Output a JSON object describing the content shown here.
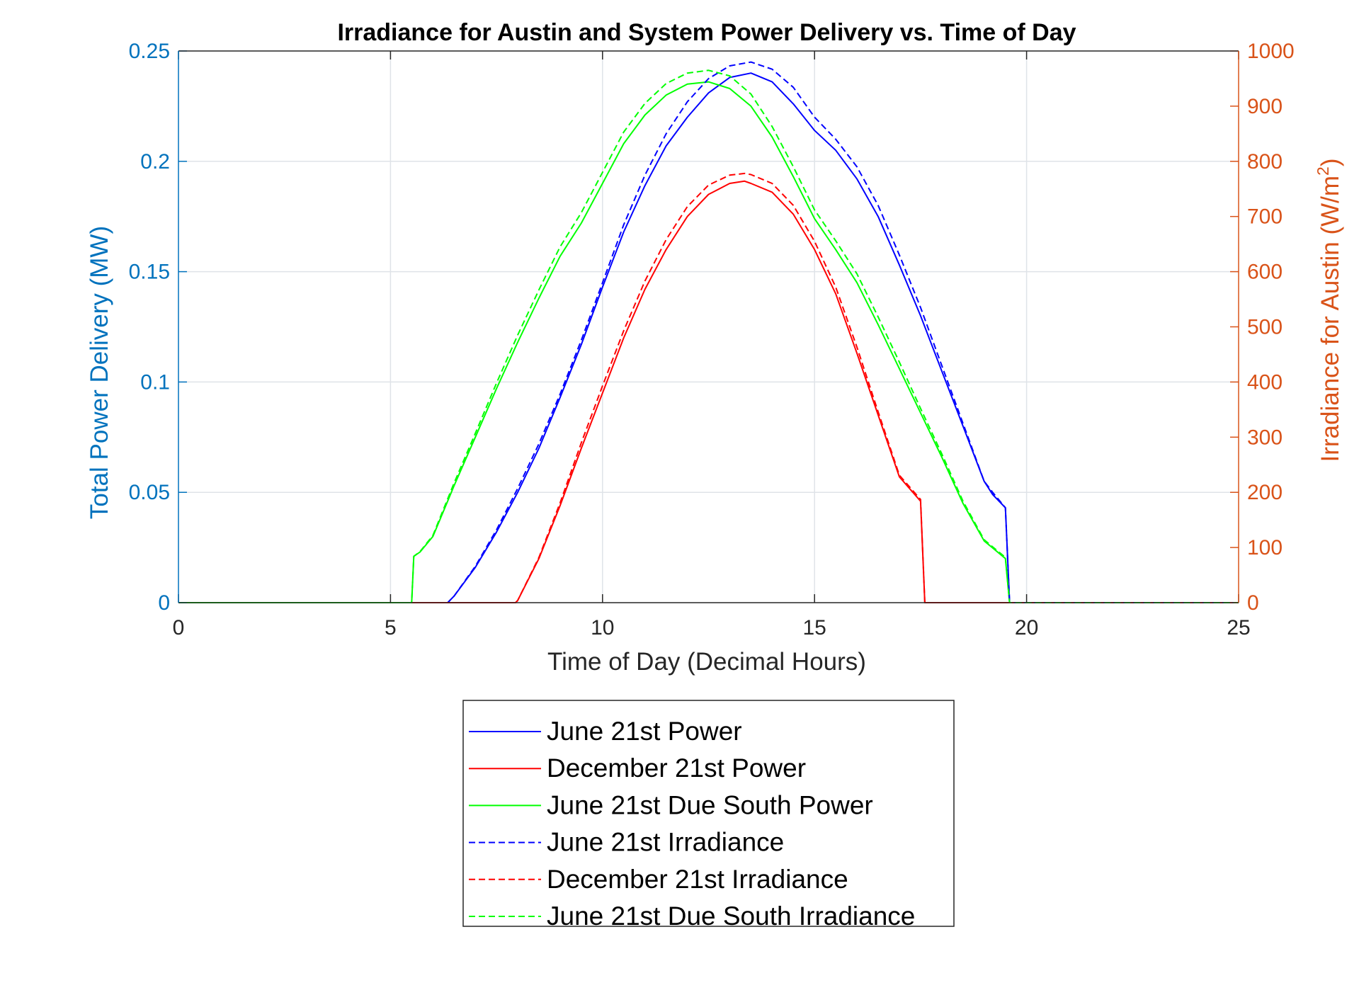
{
  "chart_data": {
    "type": "line",
    "title": "Irradiance for Austin and System Power Delivery vs. Time of Day",
    "xlabel": "Time of Day (Decimal Hours)",
    "ylabel_left": "Total Power Delivery (MW)",
    "ylabel_right_base": "Irradiance for Austin (W/m",
    "ylabel_right_sup": "2",
    "ylabel_right_close": ")",
    "xlim": [
      0,
      25
    ],
    "ylim_left": [
      0,
      0.25
    ],
    "ylim_right": [
      0,
      1000
    ],
    "xticks": [
      "0",
      "5",
      "10",
      "15",
      "20",
      "25"
    ],
    "yticks_left": [
      "0",
      "0.05",
      "0.1",
      "0.15",
      "0.2",
      "0.25"
    ],
    "yticks_right": [
      "0",
      "100",
      "200",
      "300",
      "400",
      "500",
      "600",
      "700",
      "800",
      "900",
      "1000"
    ],
    "grid": true,
    "legend_placement": "below plot, centered",
    "colors": {
      "left_axis": "#0072BD",
      "right_axis": "#D95319",
      "grid": "#dfe3e8",
      "frame": "#262626"
    },
    "series": [
      {
        "name": "June 21st Power",
        "axis": "left",
        "color": "#0000ff",
        "dash": "solid",
        "x": [
          0,
          6.35,
          6.5,
          7,
          7.5,
          8,
          8.5,
          9,
          9.5,
          10,
          10.5,
          11,
          11.5,
          12,
          12.5,
          13,
          13.5,
          14,
          14.5,
          15,
          15.5,
          16,
          16.5,
          17,
          17.5,
          18,
          18.5,
          19,
          19.2,
          19.5,
          19.6,
          25
        ],
        "y": [
          0,
          0,
          0.003,
          0.016,
          0.032,
          0.05,
          0.07,
          0.093,
          0.117,
          0.143,
          0.168,
          0.189,
          0.207,
          0.22,
          0.231,
          0.238,
          0.24,
          0.236,
          0.226,
          0.214,
          0.205,
          0.192,
          0.175,
          0.153,
          0.13,
          0.105,
          0.08,
          0.055,
          0.049,
          0.043,
          0,
          0
        ]
      },
      {
        "name": "December 21st Power",
        "axis": "left",
        "color": "#ff0000",
        "dash": "solid",
        "x": [
          0,
          7.95,
          8,
          8.5,
          9,
          9.5,
          10,
          10.5,
          11,
          11.5,
          12,
          12.5,
          13,
          13.35,
          13.5,
          14,
          14.5,
          15,
          15.5,
          16,
          16.5,
          17,
          17.5,
          17.6,
          25
        ],
        "y": [
          0,
          0,
          0.001,
          0.02,
          0.044,
          0.07,
          0.095,
          0.12,
          0.142,
          0.16,
          0.175,
          0.185,
          0.19,
          0.191,
          0.19,
          0.186,
          0.176,
          0.16,
          0.14,
          0.113,
          0.085,
          0.057,
          0.046,
          0,
          0
        ]
      },
      {
        "name": "June 21st Due South Power",
        "axis": "left",
        "color": "#00ff00",
        "dash": "solid",
        "x": [
          0,
          5.5,
          5.55,
          5.7,
          6,
          6.5,
          7,
          7.5,
          8,
          8.5,
          9,
          9.5,
          10,
          10.5,
          11,
          11.5,
          12,
          12.5,
          13,
          13.5,
          14,
          14.5,
          15,
          15.5,
          16,
          16.5,
          17,
          17.5,
          18,
          18.5,
          19,
          19.5,
          19.6,
          25
        ],
        "y": [
          0,
          0,
          0.021,
          0.023,
          0.03,
          0.053,
          0.075,
          0.097,
          0.118,
          0.138,
          0.157,
          0.172,
          0.19,
          0.208,
          0.221,
          0.23,
          0.235,
          0.236,
          0.233,
          0.225,
          0.211,
          0.193,
          0.174,
          0.16,
          0.145,
          0.126,
          0.106,
          0.086,
          0.066,
          0.045,
          0.028,
          0.02,
          0,
          0
        ]
      },
      {
        "name": "June 21st Irradiance",
        "axis": "right",
        "color": "#0000ff",
        "dash": "dashed",
        "x": [
          0,
          6.35,
          6.5,
          7,
          7.5,
          8,
          8.5,
          9,
          9.5,
          10,
          10.5,
          11,
          11.5,
          12,
          12.5,
          13,
          13.5,
          14,
          14.5,
          15,
          15.5,
          16,
          16.5,
          17,
          17.5,
          18,
          18.5,
          19,
          19.2,
          19.5,
          19.6,
          25
        ],
        "y": [
          0,
          0,
          12,
          66,
          132,
          207,
          288,
          378,
          476,
          580,
          685,
          775,
          850,
          908,
          950,
          973,
          980,
          967,
          934,
          880,
          840,
          790,
          720,
          630,
          535,
          430,
          325,
          220,
          200,
          172,
          0,
          0
        ]
      },
      {
        "name": "December 21st Irradiance",
        "axis": "right",
        "color": "#ff0000",
        "dash": "dashed",
        "x": [
          0,
          7.95,
          8,
          8.5,
          9,
          9.5,
          10,
          10.5,
          11,
          11.5,
          12,
          12.5,
          13,
          13.35,
          13.5,
          14,
          14.5,
          15,
          15.5,
          16,
          16.5,
          17,
          17.5,
          17.6,
          25
        ],
        "y": [
          0,
          0,
          4,
          82,
          181,
          290,
          393,
          493,
          583,
          658,
          718,
          757,
          775,
          778,
          776,
          760,
          720,
          655,
          572,
          463,
          346,
          231,
          187,
          0,
          0
        ]
      },
      {
        "name": "June 21st Due South Irradiance",
        "axis": "right",
        "color": "#00ff00",
        "dash": "dashed",
        "x": [
          0,
          5.5,
          5.55,
          5.7,
          6,
          6.5,
          7,
          7.5,
          8,
          8.5,
          9,
          9.5,
          10,
          10.5,
          11,
          11.5,
          12,
          12.5,
          13,
          13.5,
          14,
          14.5,
          15,
          15.5,
          16,
          16.5,
          17,
          17.5,
          18,
          18.5,
          19,
          19.5,
          19.6,
          25
        ],
        "y": [
          0,
          0,
          84,
          93,
          122,
          217,
          307,
          398,
          485,
          567,
          645,
          707,
          780,
          853,
          905,
          941,
          960,
          965,
          955,
          922,
          863,
          790,
          712,
          656,
          596,
          518,
          436,
          352,
          270,
          184,
          114,
          82,
          0,
          0
        ]
      }
    ]
  }
}
